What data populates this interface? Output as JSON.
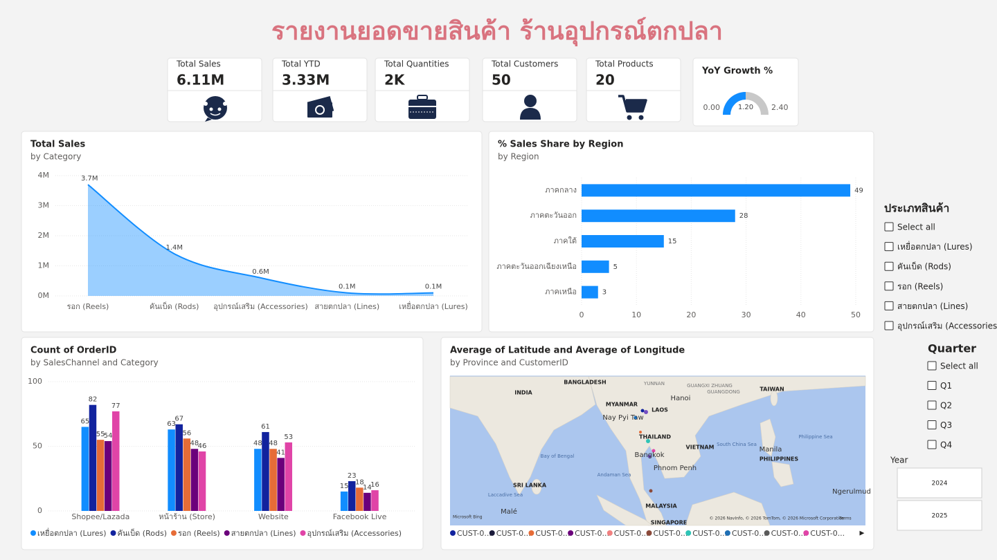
{
  "title": "รายงานยอดขายสินค้า ร้านอุปกรณ์ตกปลา",
  "kpis": [
    {
      "label": "Total Sales",
      "value": "6.11M"
    },
    {
      "label": "Total YTD",
      "value": "3.33M"
    },
    {
      "label": "Total Quantities",
      "value": "2K"
    },
    {
      "label": "Total Customers",
      "value": "50"
    },
    {
      "label": "Total Products",
      "value": "20"
    }
  ],
  "chart_data": [
    {
      "type": "area",
      "title": "Total Sales",
      "subtitle": "by Category",
      "categories": [
        "รอก (Reels)",
        "คันเบ็ด (Rods)",
        "อุปกรณ์เสริม (Accessories)",
        "สายตกปลา (Lines)",
        "เหยื่อตกปลา (Lures)"
      ],
      "values": [
        3700000,
        1400000,
        600000,
        100000,
        100000
      ],
      "value_labels": [
        "3.7M",
        "1.4M",
        "0.6M",
        "0.1M",
        "0.1M"
      ],
      "color": "#118dff",
      "ylim": [
        0,
        4000000
      ],
      "yticks": [
        {
          "value": 0,
          "label": "0M"
        },
        {
          "value": 1000000,
          "label": "1M"
        },
        {
          "value": 2000000,
          "label": "2M"
        },
        {
          "value": 3000000,
          "label": "3M"
        },
        {
          "value": 4000000,
          "label": "4M"
        }
      ],
      "grid": true
    },
    {
      "type": "bar",
      "orientation": "horizontal",
      "title": "% Sales Share by Region",
      "subtitle": "by Region",
      "categories": [
        "ภาคกลาง",
        "ภาคตะวันออก",
        "ภาคใต้",
        "ภาคตะวันออกเฉียงเหนือ",
        "ภาคเหนือ"
      ],
      "values": [
        49,
        28,
        15,
        5,
        3
      ],
      "color": "#118dff",
      "xlim": [
        0,
        50
      ],
      "xticks": [
        0,
        10,
        20,
        30,
        40,
        50
      ],
      "grid": true
    },
    {
      "type": "bar",
      "title": "Count of OrderID",
      "subtitle": "by SalesChannel and Category",
      "categories": [
        "Shopee/Lazada",
        "หน้าร้าน (Store)",
        "Website",
        "Facebook Live"
      ],
      "series": [
        {
          "name": "เหยื่อตกปลา (Lures)",
          "color": "#118dff",
          "values": [
            65,
            63,
            48,
            15
          ]
        },
        {
          "name": "คันเบ็ด (Rods)",
          "color": "#12239e",
          "values": [
            82,
            67,
            61,
            23
          ]
        },
        {
          "name": "รอก (Reels)",
          "color": "#e66c37",
          "values": [
            55,
            56,
            48,
            18
          ]
        },
        {
          "name": "สายตกปลา (Lines)",
          "color": "#6b007b",
          "values": [
            54,
            48,
            41,
            14
          ]
        },
        {
          "name": "อุปกรณ์เสริม (Accessories)",
          "color": "#e044a7",
          "values": [
            77,
            46,
            53,
            16
          ]
        }
      ],
      "ylim": [
        0,
        100
      ],
      "yticks": [
        0,
        50,
        100
      ],
      "grid": true,
      "legend": "bottom-left"
    },
    {
      "type": "gauge",
      "title": "YoY Growth %",
      "values": [
        1.2
      ],
      "value_labels": [
        "1.20"
      ],
      "color": "#118dff",
      "ylim": [
        0,
        2.4
      ],
      "yticks": [
        {
          "value": 0,
          "label": "0.00"
        },
        {
          "value": 2.4,
          "label": "2.40"
        }
      ]
    }
  ],
  "map": {
    "title": "Average of Latitude and Average of Longitude",
    "subtitle": "by Province and CustomerID",
    "labels": [
      "BANGLADESH",
      "YUNNAN",
      "GUANGXI ZHUANG",
      "GUANGDONG",
      "TAIWAN",
      "INDIA",
      "MYANMAR",
      "Hanoi",
      "Nay Pyi Taw",
      "LAOS",
      "THAILAND",
      "VIETNAM",
      "South China Sea",
      "Philippine Sea",
      "PHILIPPINES",
      "Manila",
      "Bay of Bengal",
      "Bangkok",
      "Phnom Penh",
      "Andaman Sea",
      "SRI LANKA",
      "Laccadive Sea",
      "MALAYSIA",
      "Malé",
      "SINGAPORE",
      "Ngerulmud",
      "Microsoft Bing",
      "© 2026 NavInfo, © 2026 TomTom, © 2026 Microsoft Corporation",
      "Terms"
    ],
    "legend": [
      {
        "name": "CUST-0...",
        "color": "#12239e"
      },
      {
        "name": "CUST-0...",
        "color": "#1b1b3a"
      },
      {
        "name": "CUST-0...",
        "color": "#e66c37"
      },
      {
        "name": "CUST-0...",
        "color": "#6b007b"
      },
      {
        "name": "CUST-0...",
        "color": "#f08080"
      },
      {
        "name": "CUST-0...",
        "color": "#8b4a3a"
      },
      {
        "name": "CUST-0...",
        "color": "#2ec4b6"
      },
      {
        "name": "CUST-0...",
        "color": "#1f6fb4"
      },
      {
        "name": "CUST-0...",
        "color": "#5a5a5a"
      },
      {
        "name": "CUST-0...",
        "color": "#e044a7"
      }
    ]
  },
  "slicers": {
    "category": {
      "title": "ประเภทสินค้า",
      "items": [
        "Select all",
        "เหยื่อตกปลา (Lures)",
        "คันเบ็ด (Rods)",
        "รอก (Reels)",
        "สายตกปลา (Lines)",
        "อุปกรณ์เสริม (Accessories)"
      ]
    },
    "quarter": {
      "title": "Quarter",
      "items": [
        "Select all",
        "Q1",
        "Q2",
        "Q3",
        "Q4"
      ]
    },
    "year": {
      "title": "Year",
      "items": [
        "2024",
        "2025"
      ]
    }
  }
}
